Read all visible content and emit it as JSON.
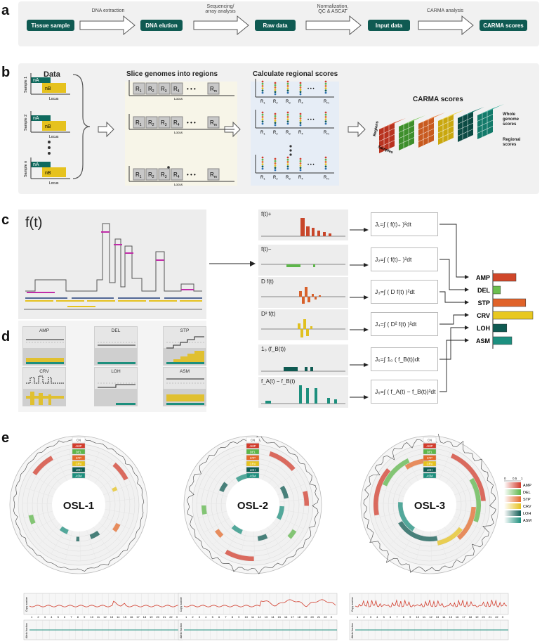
{
  "panels": {
    "a": "a",
    "b": "b",
    "c": "c",
    "d": "d",
    "e": "e"
  },
  "pipeline": {
    "steps": [
      "Tissue sample",
      "DNA elution",
      "Raw data",
      "Input data",
      "CARMA scores"
    ],
    "arrows": [
      "DNA extraction",
      "Sequencing/\narray analysis",
      "Normalization,\nQC & ASCAT",
      "CARMA analysis"
    ]
  },
  "b": {
    "data_title": "Data",
    "samples": [
      "Sample 1",
      "Sample 2",
      "Sample n"
    ],
    "nA": "nA",
    "nB": "nB",
    "locus": "Locus",
    "slice_title": "Slice genomes into regions",
    "regions": [
      "R",
      "R",
      "R",
      "R",
      "R"
    ],
    "region_subs": [
      "1",
      "2",
      "3",
      "4",
      "m"
    ],
    "calc_title": "Calculate regional scores",
    "carma_title": "CARMA scores",
    "regions_axis": "Regions",
    "samples_axis": "Samples",
    "whole_genome": "Whole\ngenome\nscores",
    "regional": "Regional\nscores"
  },
  "c": {
    "ft": "f(t)",
    "fn_labels": [
      "f(t)+",
      "f(t)−",
      "D f(t)",
      "D² f(t)",
      "1₀ (f_B(t))",
      "f_A(t) − f_B(t)"
    ],
    "equations": [
      "J₁=∫ ( f(t)₊ )²dt",
      "J₂=∫ ( f(t)₋ )²dt",
      "J₃=∫ ( D f(t) )²dt",
      "J₄=∫ ( D² f(t) )²dt",
      "J₅=∫ 1₀ ( f_B(t))dt",
      "J₆=∫ ( f_A(t) − f_B(t))²dt"
    ],
    "scores": [
      "AMP",
      "DEL",
      "STP",
      "CRV",
      "LOH",
      "ASM"
    ],
    "score_colors": [
      "#d0472a",
      "#6cbf4f",
      "#e0632a",
      "#e8c820",
      "#0f5a52",
      "#1c9080"
    ],
    "score_values": [
      0.55,
      0.18,
      0.78,
      0.95,
      0.33,
      0.45
    ]
  },
  "d": {
    "titles": [
      "AMP",
      "DEL",
      "STP",
      "CRV",
      "LOH",
      "ASM"
    ]
  },
  "e": {
    "plots": [
      "OSL-1",
      "OSL-2",
      "OSL-3"
    ],
    "legend_tracks": [
      "CN",
      "AMP",
      "DEL",
      "STP",
      "CRV",
      "LOH",
      "ASM"
    ],
    "legend_scale": [
      "0",
      "0.5",
      "1"
    ],
    "legend_items": [
      "AMP",
      "DEL",
      "STP",
      "CRV",
      "LOH",
      "ASM"
    ],
    "legend_colors": [
      "#d23c2c",
      "#5db64a",
      "#e3692b",
      "#e6c21e",
      "#0f5a52",
      "#1d8f7d"
    ],
    "copy_number": "Copy number",
    "allelic": "Allelic fraction",
    "chroms": [
      "1",
      "2",
      "3",
      "4",
      "5",
      "6",
      "7",
      "8",
      "9",
      "10",
      "11",
      "12",
      "13",
      "14",
      "15",
      "16",
      "17",
      "18",
      "19",
      "20",
      "21",
      "22",
      "X"
    ]
  }
}
